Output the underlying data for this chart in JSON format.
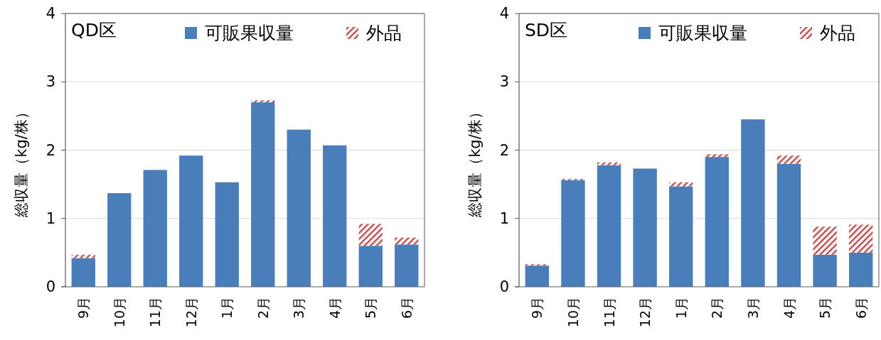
{
  "chart_data": [
    {
      "type": "bar",
      "title": "QD区",
      "ylabel": "総収量（kg/株）",
      "categories": [
        "9月",
        "10月",
        "11月",
        "12月",
        "1月",
        "2月",
        "3月",
        "4月",
        "5月",
        "6月"
      ],
      "stacked": true,
      "ylim": [
        0,
        4
      ],
      "yticks": [
        0,
        1,
        2,
        3,
        4
      ],
      "grid": "y",
      "legend": "top",
      "series": [
        {
          "name": "可販果収量",
          "color": "#4a7ebb",
          "values": [
            0.42,
            1.37,
            1.71,
            1.92,
            1.53,
            2.7,
            2.3,
            2.07,
            0.6,
            0.62
          ]
        },
        {
          "name": "外品",
          "color": "#c0504d",
          "values": [
            0.05,
            0,
            0,
            0,
            0,
            0.03,
            0,
            0,
            0.32,
            0.1
          ]
        }
      ]
    },
    {
      "type": "bar",
      "title": "SD区",
      "ylabel": "総収量（kg/株）",
      "categories": [
        "9月",
        "10月",
        "11月",
        "12月",
        "1月",
        "2月",
        "3月",
        "4月",
        "5月",
        "6月"
      ],
      "stacked": true,
      "ylim": [
        0,
        4
      ],
      "yticks": [
        0,
        1,
        2,
        3,
        4
      ],
      "grid": "y",
      "legend": "top",
      "series": [
        {
          "name": "可販果収量",
          "color": "#4a7ebb",
          "values": [
            0.31,
            1.56,
            1.78,
            1.73,
            1.47,
            1.9,
            2.45,
            1.8,
            0.47,
            0.5
          ]
        },
        {
          "name": "外品",
          "color": "#c0504d",
          "values": [
            0.02,
            0.02,
            0.04,
            0,
            0.06,
            0.04,
            0,
            0.12,
            0.41,
            0.41
          ]
        }
      ]
    }
  ]
}
